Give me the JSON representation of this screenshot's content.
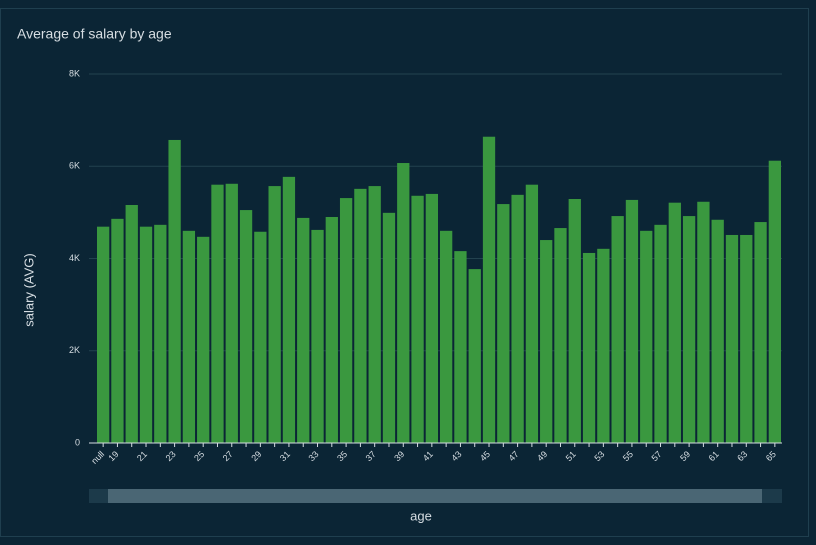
{
  "chart_data": {
    "type": "bar",
    "title": "Average of salary by age",
    "x_label": "age",
    "y_label": "salary (AVG)",
    "categories": [
      "null",
      "19",
      null,
      "21",
      null,
      "23",
      null,
      "25",
      null,
      "27",
      null,
      "29",
      null,
      "31",
      null,
      "33",
      null,
      "35",
      null,
      "37",
      null,
      "39",
      null,
      "41",
      null,
      "43",
      null,
      "45",
      null,
      "47",
      null,
      "49",
      null,
      "51",
      null,
      "53",
      null,
      "55",
      null,
      "57",
      null,
      "59",
      null,
      "61",
      null,
      "63",
      null,
      "65"
    ],
    "values": [
      4690,
      4860,
      5160,
      4690,
      4730,
      6570,
      4600,
      4470,
      5600,
      5620,
      5050,
      4580,
      5570,
      5770,
      4880,
      4620,
      4900,
      5310,
      5510,
      5570,
      4990,
      6070,
      5360,
      5400,
      4600,
      4160,
      3770,
      6640,
      5180,
      5380,
      5600,
      4400,
      4660,
      5290,
      4120,
      4210,
      4920,
      5270,
      4600,
      4730,
      5210,
      4920,
      5230,
      4840,
      4510,
      4510,
      4790,
      6120
    ],
    "color": "#3a983f",
    "ylim": [
      0,
      8000
    ],
    "yticks": [
      0,
      {
        "value": 2000,
        "label": "2K"
      },
      {
        "value": 4000,
        "label": "4K"
      },
      {
        "value": 6000,
        "label": "6K"
      },
      {
        "value": 8000,
        "label": "8K"
      }
    ],
    "grid": true
  }
}
